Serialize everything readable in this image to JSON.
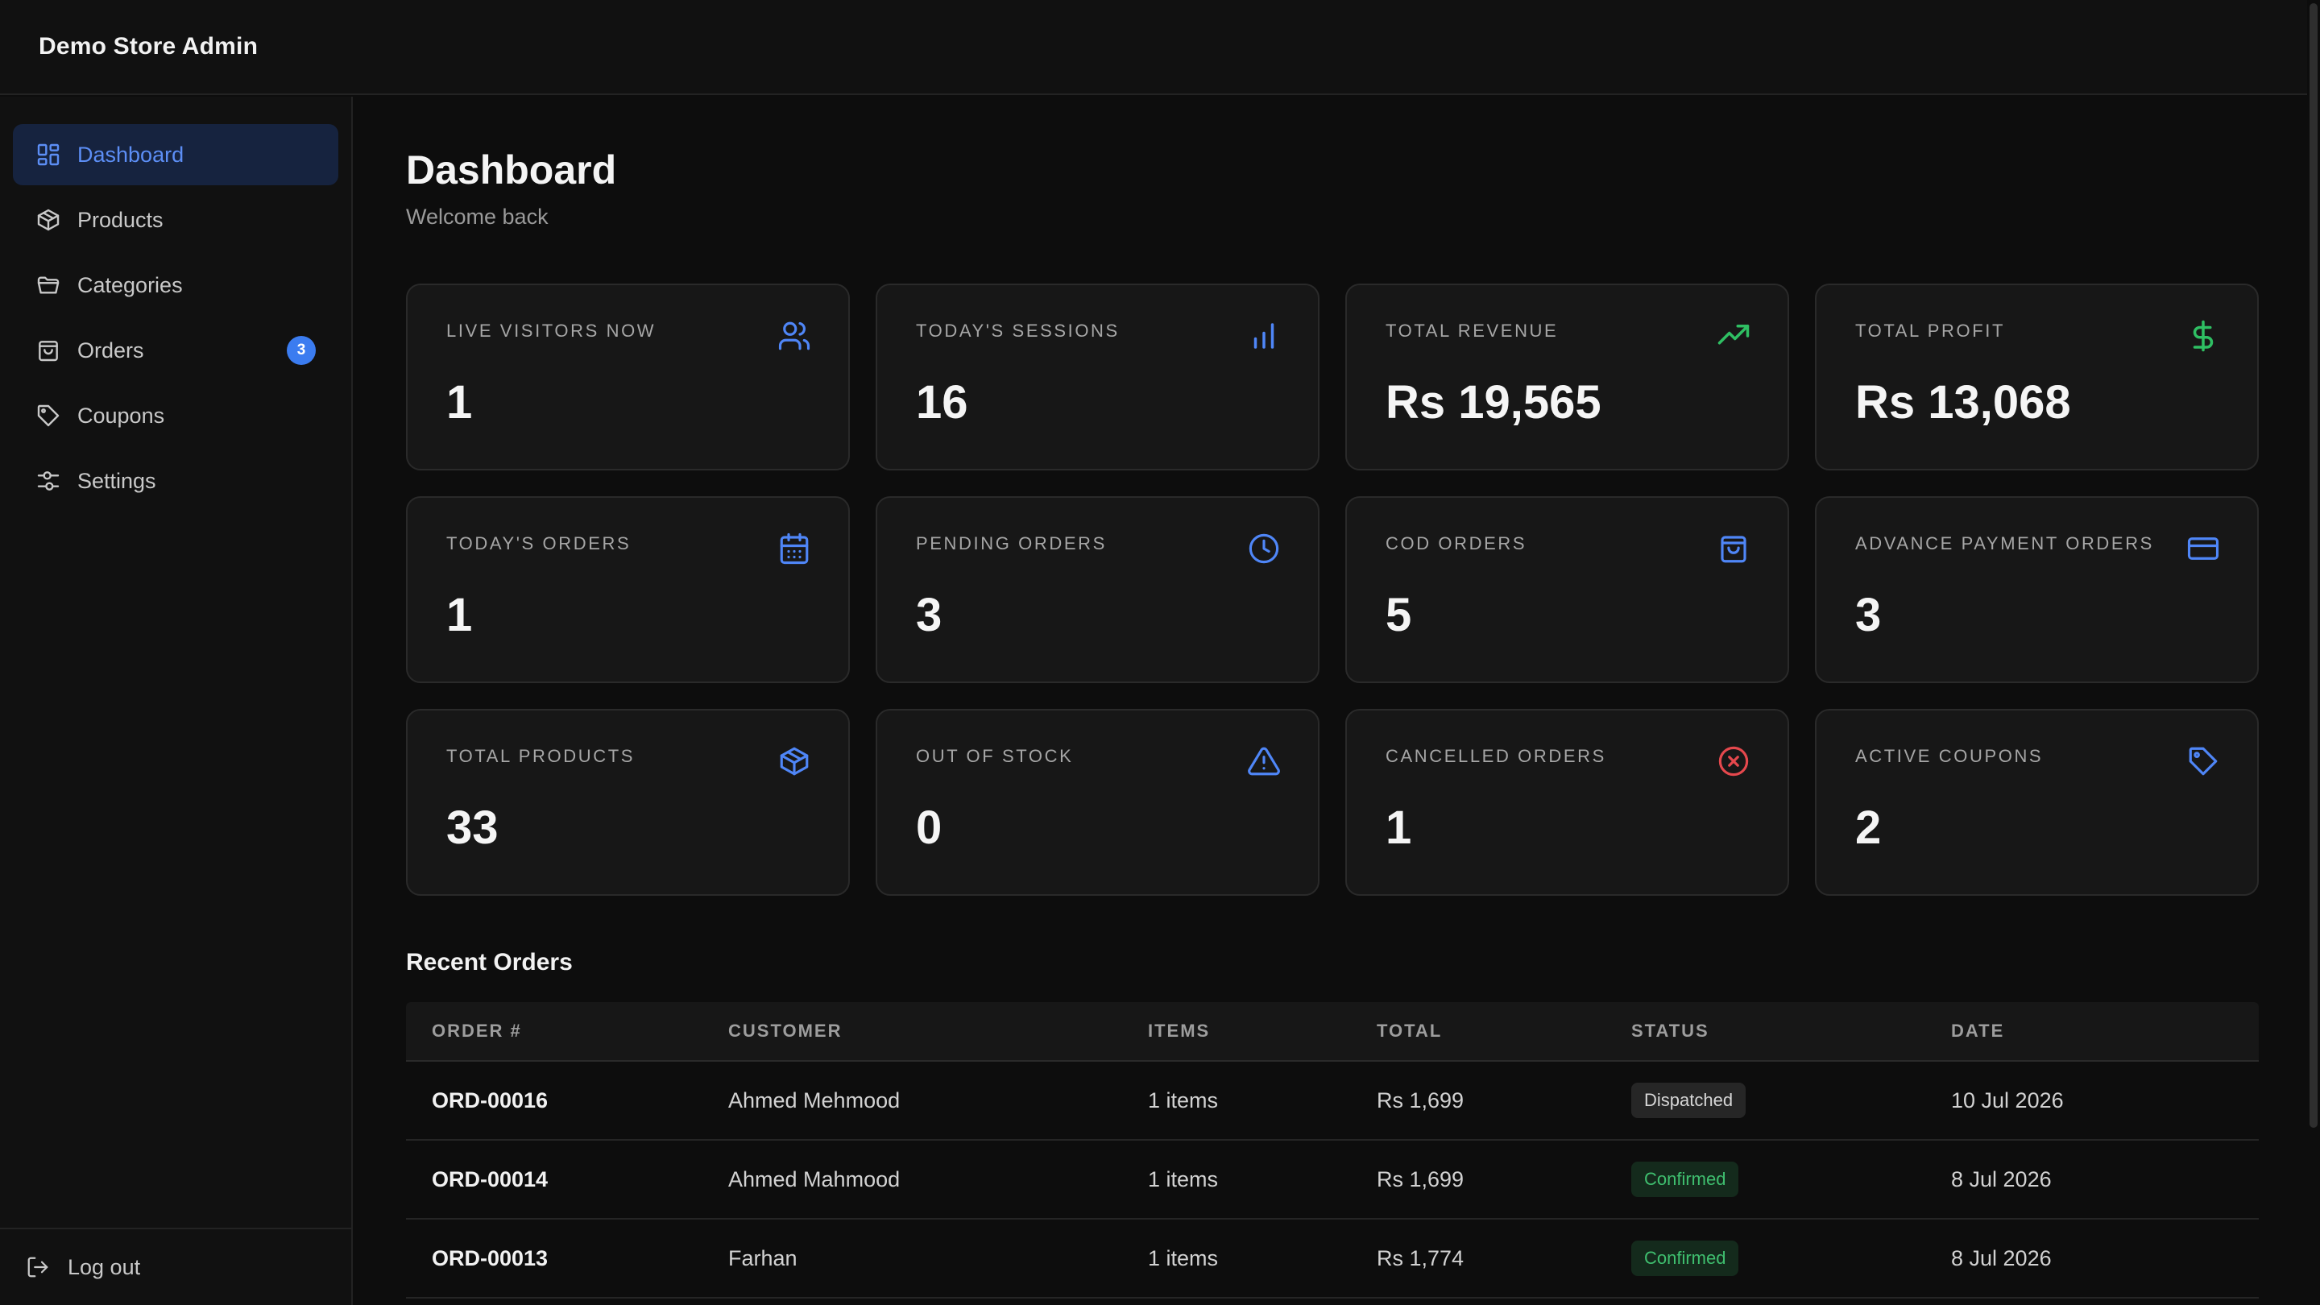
{
  "app": {
    "title": "Demo Store Admin"
  },
  "sidebar": {
    "items": [
      {
        "label": "Dashboard",
        "icon": "dashboard-icon",
        "active": true
      },
      {
        "label": "Products",
        "icon": "box-icon"
      },
      {
        "label": "Categories",
        "icon": "folder-icon"
      },
      {
        "label": "Orders",
        "icon": "shopping-bag-icon",
        "badge": "3"
      },
      {
        "label": "Coupons",
        "icon": "tag-icon"
      },
      {
        "label": "Settings",
        "icon": "sliders-icon"
      }
    ],
    "logout_label": "Log out"
  },
  "page": {
    "title": "Dashboard",
    "subtitle": "Welcome back"
  },
  "stats": [
    {
      "label": "Live Visitors Now",
      "value": "1",
      "icon": "users-icon",
      "color": "#4f86f7"
    },
    {
      "label": "Today's Sessions",
      "value": "16",
      "icon": "bar-chart-icon",
      "color": "#4f86f7"
    },
    {
      "label": "Total Revenue",
      "value": "Rs 19,565",
      "icon": "trending-up-icon",
      "color": "#2fbf63"
    },
    {
      "label": "Total Profit",
      "value": "Rs 13,068",
      "icon": "dollar-icon",
      "color": "#2fbf63"
    },
    {
      "label": "Today's Orders",
      "value": "1",
      "icon": "calendar-icon",
      "color": "#4f86f7"
    },
    {
      "label": "Pending Orders",
      "value": "3",
      "icon": "clock-icon",
      "color": "#4f86f7"
    },
    {
      "label": "COD Orders",
      "value": "5",
      "icon": "shopping-bag-icon",
      "color": "#4f86f7"
    },
    {
      "label": "Advance Payment Orders",
      "value": "3",
      "icon": "credit-card-icon",
      "color": "#4f86f7"
    },
    {
      "label": "Total Products",
      "value": "33",
      "icon": "box-icon",
      "color": "#4f86f7"
    },
    {
      "label": "Out of Stock",
      "value": "0",
      "icon": "alert-triangle-icon",
      "color": "#4f86f7"
    },
    {
      "label": "Cancelled Orders",
      "value": "1",
      "icon": "x-circle-icon",
      "color": "#e5484d"
    },
    {
      "label": "Active Coupons",
      "value": "2",
      "icon": "tag-icon",
      "color": "#4f86f7"
    }
  ],
  "recent_orders": {
    "title": "Recent Orders",
    "columns": [
      "Order #",
      "Customer",
      "Items",
      "Total",
      "Status",
      "Date"
    ],
    "rows": [
      {
        "order": "ORD-00016",
        "customer": "Ahmed Mehmood",
        "items": "1 items",
        "total": "Rs 1,699",
        "status": "Dispatched",
        "status_kind": "dispatched",
        "date": "10 Jul 2026"
      },
      {
        "order": "ORD-00014",
        "customer": "Ahmed Mahmood",
        "items": "1 items",
        "total": "Rs 1,699",
        "status": "Confirmed",
        "status_kind": "confirmed",
        "date": "8 Jul 2026"
      },
      {
        "order": "ORD-00013",
        "customer": "Farhan",
        "items": "1 items",
        "total": "Rs 1,774",
        "status": "Confirmed",
        "status_kind": "confirmed",
        "date": "8 Jul 2026"
      }
    ]
  }
}
